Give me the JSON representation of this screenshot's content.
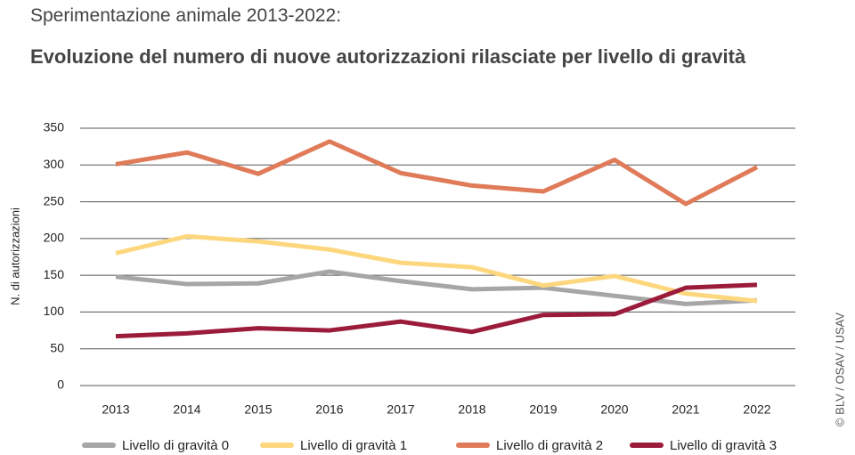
{
  "chart_data": {
    "type": "line",
    "supertitle": "Sperimentazione animale 2013-2022:",
    "title": "Evoluzione del numero di nuove autorizzazioni rilasciate per livello di gravità",
    "y_label": "N. di autorizzazioni",
    "credit": "© BLV / OSAV / USAV",
    "categories": [
      "2013",
      "2014",
      "2015",
      "2016",
      "2017",
      "2018",
      "2019",
      "2020",
      "2021",
      "2022"
    ],
    "series": [
      {
        "name": "Livello di gravità 0",
        "color": "#a6a6a6",
        "values": [
          148,
          138,
          139,
          155,
          142,
          131,
          133,
          122,
          111,
          116
        ]
      },
      {
        "name": "Livello di gravità 1",
        "color": "#fdd77e",
        "values": [
          180,
          203,
          196,
          185,
          167,
          161,
          136,
          149,
          125,
          115
        ]
      },
      {
        "name": "Livello di gravità 2",
        "color": "#e07b5a",
        "values": [
          301,
          317,
          288,
          332,
          289,
          272,
          264,
          307,
          247,
          297
        ]
      },
      {
        "name": "Livello di gravità 3",
        "color": "#9b1b3a",
        "values": [
          67,
          71,
          78,
          75,
          87,
          73,
          96,
          97,
          133,
          137
        ]
      }
    ],
    "ylim": [
      0,
      350
    ],
    "yticks": [
      0,
      50,
      100,
      150,
      200,
      250,
      300,
      350
    ],
    "grid": true
  }
}
